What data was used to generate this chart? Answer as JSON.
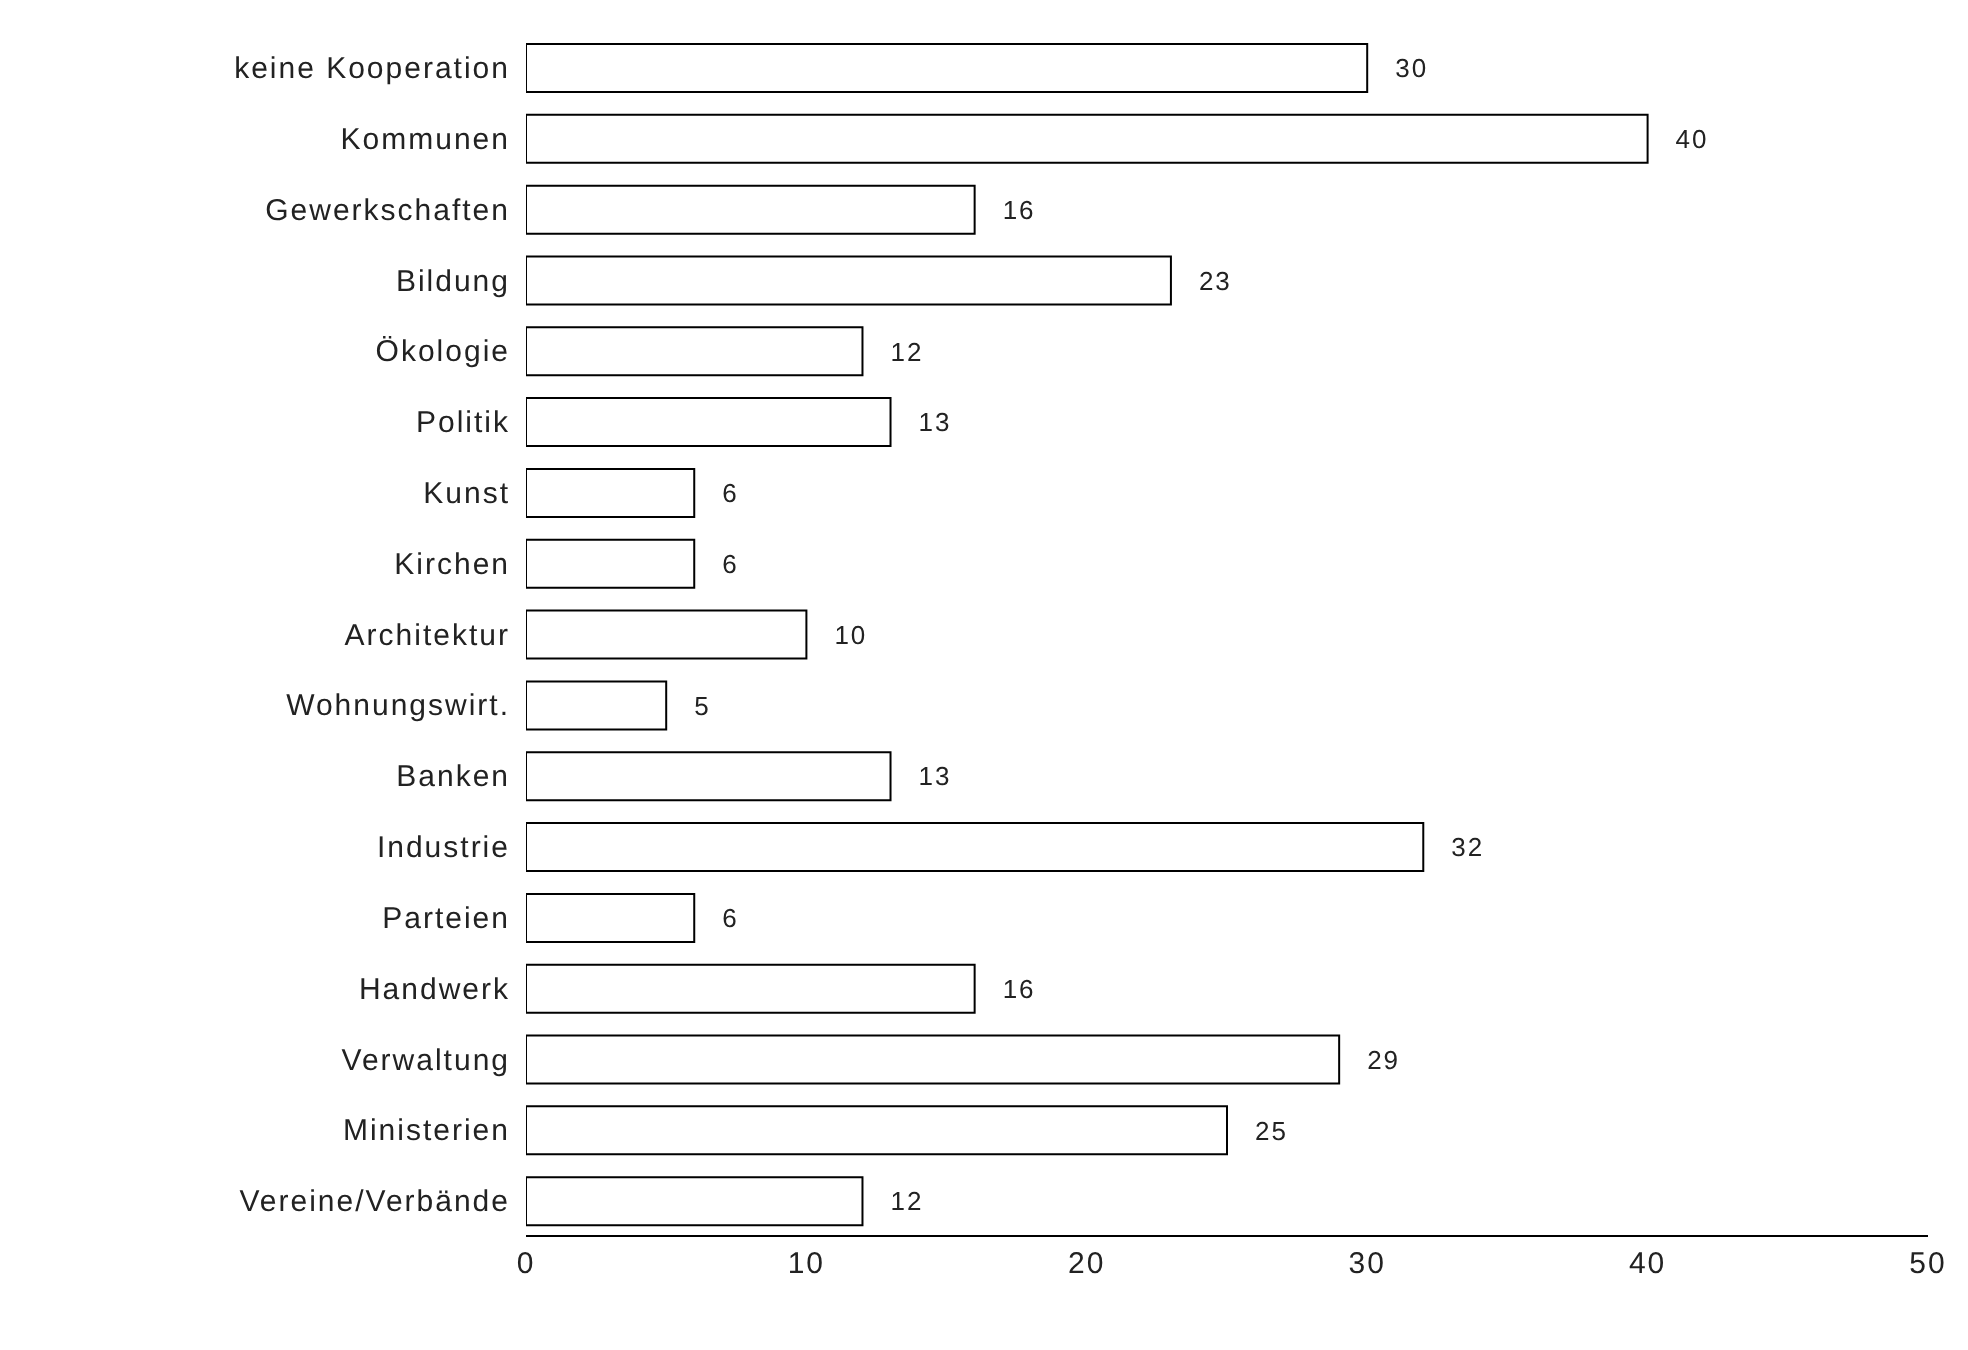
{
  "chart_data": {
    "type": "bar",
    "orientation": "horizontal",
    "categories": [
      "keine Kooperation",
      "Kommunen",
      "Gewerkschaften",
      "Bildung",
      "Ökologie",
      "Politik",
      "Kunst",
      "Kirchen",
      "Architektur",
      "Wohnungswirt.",
      "Banken",
      "Industrie",
      "Parteien",
      "Handwerk",
      "Verwaltung",
      "Ministerien",
      "Vereine/Verbände"
    ],
    "values": [
      30,
      40,
      16,
      23,
      12,
      13,
      6,
      6,
      10,
      5,
      13,
      32,
      6,
      16,
      29,
      25,
      12
    ],
    "color": "#ffffff",
    "xlim": [
      0,
      50
    ],
    "xticks": [
      0,
      10,
      20,
      30,
      40,
      50
    ],
    "data_labels": true
  }
}
